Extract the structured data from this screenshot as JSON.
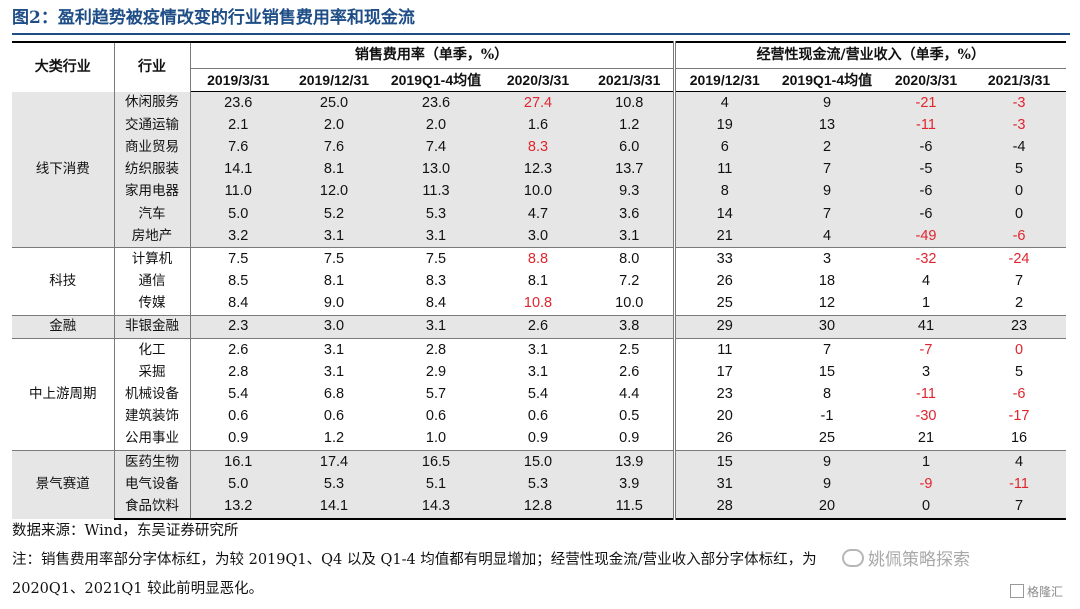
{
  "title": "图2：盈利趋势被疫情改变的行业销售费用率和现金流",
  "headers": {
    "category": "大类行业",
    "industry": "行业",
    "group1": "销售费用率（单季，%）",
    "group2": "经营性现金流/营业收入（单季，%）",
    "g1_cols": [
      "2019/3/31",
      "2019/12/31",
      "2019Q1-4均值",
      "2020/3/31",
      "2021/3/31"
    ],
    "g2_cols": [
      "2019/12/31",
      "2019Q1-4均值",
      "2020/3/31",
      "2021/3/31"
    ]
  },
  "groups": [
    {
      "name": "线下消费",
      "rows": [
        {
          "industry": "休闲服务",
          "v": [
            "23.6",
            "25.0",
            "23.6",
            "27.4",
            "10.8",
            "4",
            "9",
            "-21",
            "-3"
          ],
          "red": [
            3,
            7,
            8
          ]
        },
        {
          "industry": "交通运输",
          "v": [
            "2.1",
            "2.0",
            "2.0",
            "1.6",
            "1.2",
            "19",
            "13",
            "-11",
            "-3"
          ],
          "red": [
            7,
            8
          ]
        },
        {
          "industry": "商业贸易",
          "v": [
            "7.6",
            "7.6",
            "7.4",
            "8.3",
            "6.0",
            "6",
            "2",
            "-6",
            "-4"
          ],
          "red": [
            3
          ]
        },
        {
          "industry": "纺织服装",
          "v": [
            "14.1",
            "8.1",
            "13.0",
            "12.3",
            "13.7",
            "11",
            "7",
            "-5",
            "5"
          ],
          "red": []
        },
        {
          "industry": "家用电器",
          "v": [
            "11.0",
            "12.0",
            "11.3",
            "10.0",
            "9.3",
            "8",
            "9",
            "-6",
            "0"
          ],
          "red": []
        },
        {
          "industry": "汽车",
          "v": [
            "5.0",
            "5.2",
            "5.3",
            "4.7",
            "3.6",
            "14",
            "7",
            "-6",
            "0"
          ],
          "red": []
        },
        {
          "industry": "房地产",
          "v": [
            "3.2",
            "3.1",
            "3.1",
            "3.0",
            "3.1",
            "21",
            "4",
            "-49",
            "-6"
          ],
          "red": [
            7,
            8
          ]
        }
      ]
    },
    {
      "name": "科技",
      "rows": [
        {
          "industry": "计算机",
          "v": [
            "7.5",
            "7.5",
            "7.5",
            "8.8",
            "8.0",
            "33",
            "3",
            "-32",
            "-24"
          ],
          "red": [
            3,
            7,
            8
          ]
        },
        {
          "industry": "通信",
          "v": [
            "8.5",
            "8.1",
            "8.3",
            "8.1",
            "7.2",
            "26",
            "18",
            "4",
            "7"
          ],
          "red": []
        },
        {
          "industry": "传媒",
          "v": [
            "8.4",
            "9.0",
            "8.4",
            "10.8",
            "10.0",
            "25",
            "12",
            "1",
            "2"
          ],
          "red": [
            3
          ]
        }
      ]
    },
    {
      "name": "金融",
      "rows": [
        {
          "industry": "非银金融",
          "v": [
            "2.3",
            "3.0",
            "3.1",
            "2.6",
            "3.8",
            "29",
            "30",
            "41",
            "23"
          ],
          "red": []
        }
      ]
    },
    {
      "name": "中上游周期",
      "rows": [
        {
          "industry": "化工",
          "v": [
            "2.6",
            "3.1",
            "2.8",
            "3.1",
            "2.5",
            "11",
            "7",
            "-7",
            "0"
          ],
          "red": [
            7,
            8
          ]
        },
        {
          "industry": "采掘",
          "v": [
            "2.8",
            "3.1",
            "2.9",
            "3.1",
            "2.6",
            "17",
            "15",
            "3",
            "5"
          ],
          "red": []
        },
        {
          "industry": "机械设备",
          "v": [
            "5.4",
            "6.8",
            "5.7",
            "5.4",
            "4.4",
            "23",
            "8",
            "-11",
            "-6"
          ],
          "red": [
            7,
            8
          ]
        },
        {
          "industry": "建筑装饰",
          "v": [
            "0.6",
            "0.6",
            "0.6",
            "0.6",
            "0.5",
            "20",
            "-1",
            "-30",
            "-17"
          ],
          "red": [
            7,
            8
          ]
        },
        {
          "industry": "公用事业",
          "v": [
            "0.9",
            "1.2",
            "1.0",
            "0.9",
            "0.9",
            "26",
            "25",
            "21",
            "16"
          ],
          "red": []
        }
      ]
    },
    {
      "name": "景气赛道",
      "rows": [
        {
          "industry": "医药生物",
          "v": [
            "16.1",
            "17.4",
            "16.5",
            "15.0",
            "13.9",
            "15",
            "9",
            "1",
            "4"
          ],
          "red": []
        },
        {
          "industry": "电气设备",
          "v": [
            "5.0",
            "5.3",
            "5.1",
            "5.3",
            "3.9",
            "31",
            "9",
            "-9",
            "-11"
          ],
          "red": [
            7,
            8
          ]
        },
        {
          "industry": "食品饮料",
          "v": [
            "13.2",
            "14.1",
            "14.3",
            "12.8",
            "11.5",
            "28",
            "20",
            "0",
            "7"
          ],
          "red": []
        }
      ]
    }
  ],
  "source": "数据来源：Wind，东吴证券研究所",
  "note_line1": "注：销售费用率部分字体标红，为较 2019Q1、Q4 以及 Q1-4 均值都有明显增加；经营性现金流/营业收入部分字体标红，为",
  "note_line2": "2020Q1、2021Q1 较此前明显恶化。",
  "watermark": "姚佩策略探索",
  "watermark2": "格隆汇",
  "colors": {
    "title": "#1f4e87",
    "highlight_red": "#e0252e",
    "shade": "#e6e6e6"
  }
}
